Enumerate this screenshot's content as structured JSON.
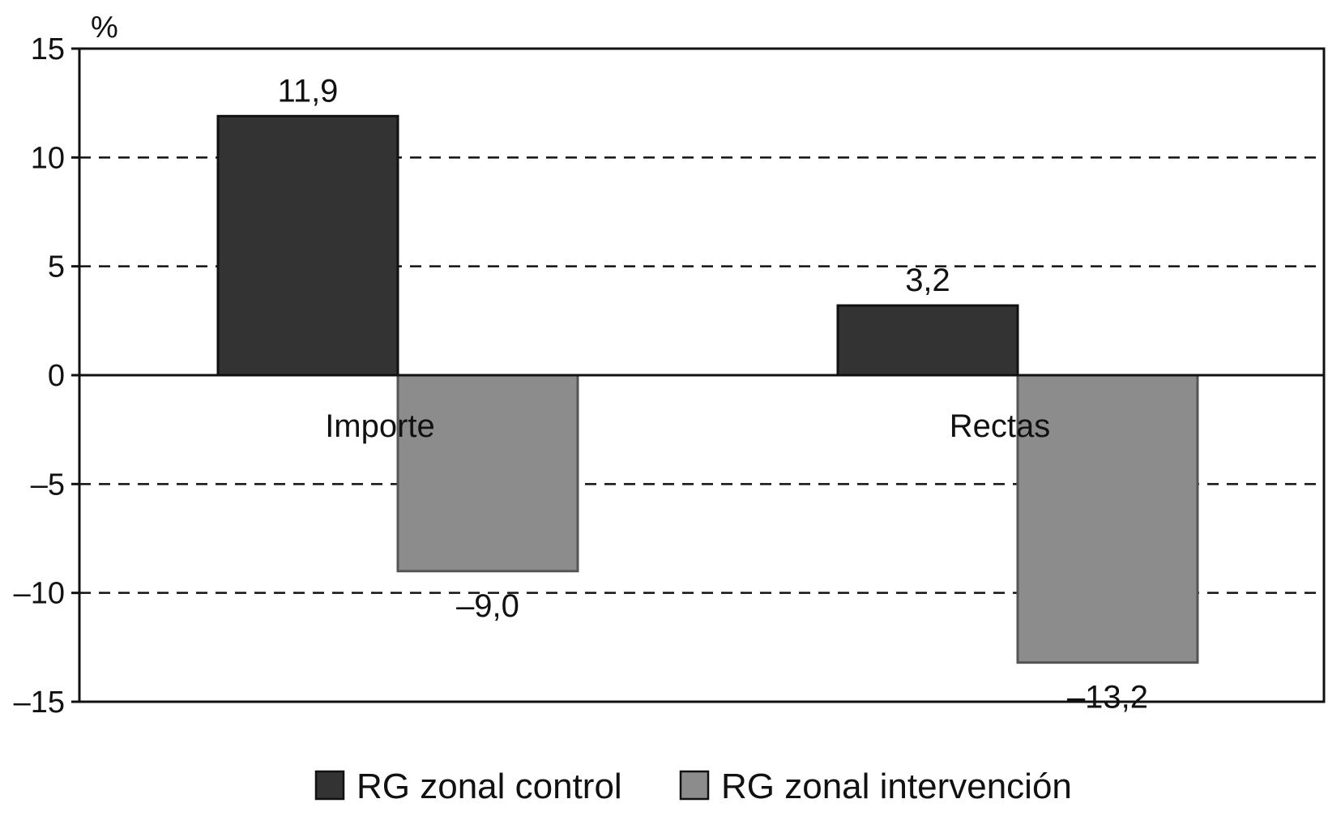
{
  "chart_data": {
    "type": "bar",
    "categories": [
      "Importe",
      "Rectas"
    ],
    "series": [
      {
        "name": "RG zonal control",
        "values": [
          11.9,
          3.2
        ],
        "labels": [
          "11,9",
          "3,2"
        ],
        "color": "#333333"
      },
      {
        "name": "RG zonal intervención",
        "values": [
          -9.0,
          -13.2
        ],
        "labels": [
          "–9,0",
          "–13,2"
        ],
        "color": "#8c8c8c"
      }
    ],
    "unit": "%",
    "ylim": [
      -15,
      15
    ],
    "yticks": [
      15,
      10,
      5,
      0,
      -5,
      -10,
      -15
    ],
    "ytick_labels": [
      "15",
      "10",
      "5",
      "0",
      "–5",
      "–10",
      "–15"
    ],
    "grid": "dashed horizontal",
    "legend": "bottom-center"
  }
}
